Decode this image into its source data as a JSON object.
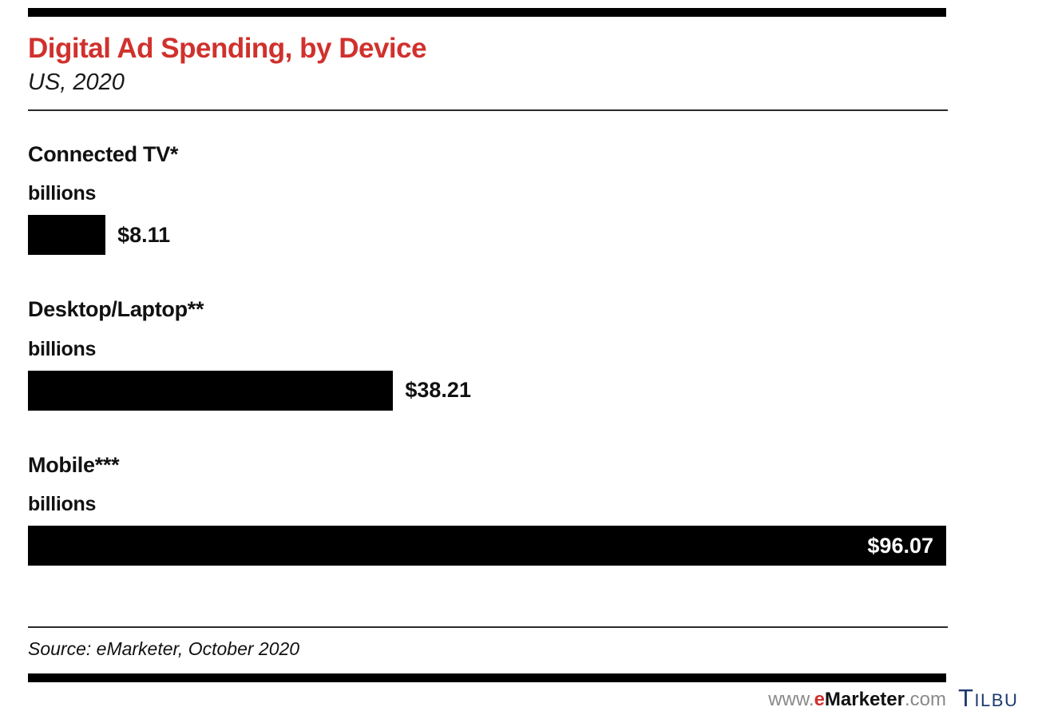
{
  "header": {
    "title": "Digital Ad Spending, by Device",
    "subtitle": "US, 2020"
  },
  "rows": [
    {
      "label": "Connected TV*",
      "unit": "billions",
      "value": 8.11,
      "value_label": "$8.11"
    },
    {
      "label": "Desktop/Laptop**",
      "unit": "billions",
      "value": 38.21,
      "value_label": "$38.21"
    },
    {
      "label": "Mobile***",
      "unit": "billions",
      "value": 96.07,
      "value_label": "$96.07"
    }
  ],
  "footer": {
    "source": "Source: eMarketer, October 2020",
    "site_prefix": "www.",
    "brand_e": "e",
    "brand_rest": "Marketer",
    "site_suffix": ".com",
    "watermark": "Tilbu"
  },
  "colors": {
    "accent_red": "#d0312d",
    "bar": "#000000",
    "watermark_blue": "#1e3a6d"
  },
  "chart_data": {
    "type": "bar",
    "orientation": "horizontal",
    "title": "Digital Ad Spending, by Device",
    "subtitle": "US, 2020",
    "categories": [
      "Connected TV*",
      "Desktop/Laptop**",
      "Mobile***"
    ],
    "values": [
      8.11,
      38.21,
      96.07
    ],
    "value_labels": [
      "$8.11",
      "$38.21",
      "$96.07"
    ],
    "unit": "billions (US$)",
    "xlabel": "",
    "ylabel": "",
    "xlim": [
      0,
      96.07
    ],
    "grid": false,
    "legend": false,
    "bar_color": "#000000",
    "source": "Source: eMarketer, October 2020"
  }
}
